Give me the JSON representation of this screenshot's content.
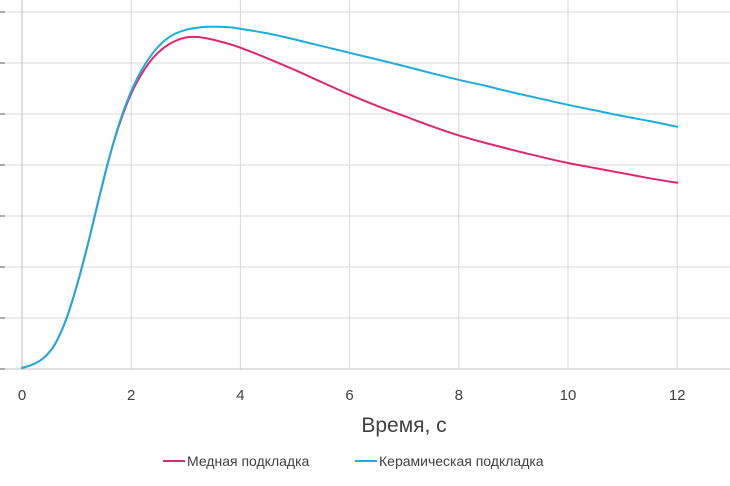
{
  "chart_data": {
    "type": "line",
    "title": "",
    "xlabel": "Время, с",
    "ylabel": "",
    "xlim": [
      0,
      13
    ],
    "x_ticks": [
      0,
      2,
      4,
      6,
      8,
      10,
      12
    ],
    "x_tick_labels": [
      "0",
      "2",
      "4",
      "6",
      "8",
      "10",
      "12"
    ],
    "y_gridlines": 8,
    "grid": true,
    "legend": "bottom",
    "series": [
      {
        "name": "Медная подкладка",
        "color": "#e0266e",
        "x": [
          0,
          0.2,
          0.4,
          0.6,
          0.8,
          1.0,
          1.2,
          1.4,
          1.6,
          1.8,
          2.0,
          2.2,
          2.4,
          2.6,
          2.8,
          3.0,
          3.2,
          3.4,
          3.6,
          3.8,
          4.0,
          4.5,
          5.0,
          5.5,
          6.0,
          6.5,
          7.0,
          7.5,
          8.0,
          8.5,
          9.0,
          9.5,
          10.0,
          10.5,
          11.0,
          11.5,
          12.0
        ],
        "y": [
          0.02,
          0.09,
          0.22,
          0.48,
          0.95,
          1.62,
          2.42,
          3.3,
          4.15,
          4.85,
          5.4,
          5.8,
          6.1,
          6.3,
          6.43,
          6.5,
          6.51,
          6.48,
          6.43,
          6.37,
          6.3,
          6.09,
          5.86,
          5.62,
          5.38,
          5.16,
          4.96,
          4.76,
          4.58,
          4.43,
          4.29,
          4.16,
          4.04,
          3.94,
          3.84,
          3.74,
          3.65
        ]
      },
      {
        "name": "Керамическая подкладка",
        "color": "#1aaedc",
        "x": [
          0,
          0.2,
          0.4,
          0.6,
          0.8,
          1.0,
          1.2,
          1.4,
          1.6,
          1.8,
          2.0,
          2.2,
          2.4,
          2.6,
          2.8,
          3.0,
          3.2,
          3.4,
          3.6,
          3.8,
          4.0,
          4.5,
          5.0,
          5.5,
          6.0,
          6.5,
          7.0,
          7.5,
          8.0,
          8.5,
          9.0,
          9.5,
          10.0,
          10.5,
          11.0,
          11.5,
          12.0
        ],
        "y": [
          0.02,
          0.09,
          0.22,
          0.48,
          0.95,
          1.62,
          2.42,
          3.3,
          4.15,
          4.88,
          5.45,
          5.88,
          6.2,
          6.43,
          6.57,
          6.65,
          6.69,
          6.71,
          6.71,
          6.7,
          6.67,
          6.58,
          6.46,
          6.33,
          6.2,
          6.07,
          5.94,
          5.8,
          5.67,
          5.55,
          5.42,
          5.3,
          5.18,
          5.07,
          4.96,
          4.86,
          4.75
        ]
      }
    ]
  }
}
